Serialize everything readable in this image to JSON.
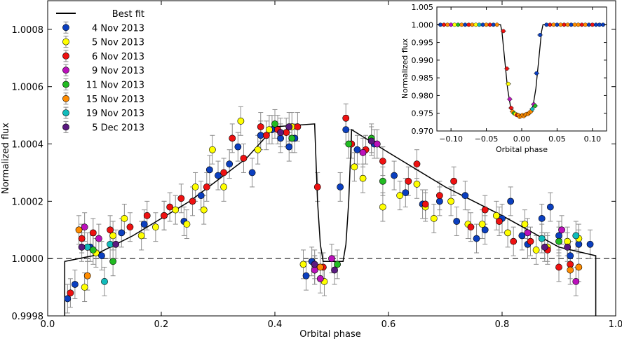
{
  "chart_data": [
    {
      "type": "scatter",
      "panel": "main",
      "xlabel": "Orbital phase",
      "ylabel": "Normalized flux",
      "xlim": [
        0.0,
        1.0
      ],
      "ylim": [
        0.9998,
        1.0009
      ],
      "xticks": [
        0.0,
        0.2,
        0.4,
        0.6,
        0.8,
        1.0
      ],
      "xtick_labels": [
        "0.0",
        "0.2",
        "0.4",
        "0.6",
        "0.8",
        "1.0"
      ],
      "yticks": [
        0.9998,
        1.0,
        1.0002,
        1.0004,
        1.0006,
        1.0008
      ],
      "ytick_labels": [
        "0.9998",
        "1.0000",
        "1.0002",
        "1.0004",
        "1.0006",
        "1.0008"
      ],
      "error_bar": 5e-05,
      "reference_line": 1.0,
      "legend_position": "top-left",
      "fit_line": {
        "name": "Best fit",
        "color": "#000000",
        "x": [
          0.03,
          0.03,
          0.08,
          0.15,
          0.25,
          0.35,
          0.4,
          0.47,
          0.475,
          0.48,
          0.485,
          0.52,
          0.525,
          0.53,
          0.535,
          0.6,
          0.7,
          0.8,
          0.9,
          0.965,
          0.965
        ],
        "y": [
          0.9998,
          0.99999,
          1.00001,
          1.00008,
          1.0002,
          1.00035,
          1.00046,
          1.00047,
          1.0002,
          1.00005,
          0.99999,
          0.99999,
          1.00005,
          1.0002,
          1.00045,
          1.00037,
          1.00025,
          1.00015,
          1.00004,
          1.00001,
          0.9998
        ]
      },
      "series": [
        {
          "name": "4 Nov 2013",
          "color": "#0b3fbf",
          "x": [
            0.035,
            0.048,
            0.075,
            0.095,
            0.13,
            0.17,
            0.205,
            0.24,
            0.27,
            0.285,
            0.3,
            0.32,
            0.335,
            0.36,
            0.375,
            0.395,
            0.41,
            0.425,
            0.435,
            0.455,
            0.465,
            0.515,
            0.525,
            0.545,
            0.575,
            0.61,
            0.63,
            0.66,
            0.69,
            0.72,
            0.735,
            0.755,
            0.77,
            0.8,
            0.815,
            0.835,
            0.845,
            0.87,
            0.885,
            0.9,
            0.92,
            0.935,
            0.955
          ],
          "y": [
            0.99986,
            0.99991,
            1.00004,
            1.00001,
            1.00009,
            1.00012,
            1.00015,
            1.00013,
            1.00022,
            1.00031,
            1.00029,
            1.00033,
            1.00039,
            1.0003,
            1.00043,
            1.00045,
            1.00042,
            1.00039,
            1.00042,
            0.99994,
            0.99999,
            1.00025,
            1.00045,
            1.00038,
            1.0004,
            1.00029,
            1.00023,
            1.00019,
            1.0002,
            1.00013,
            1.00022,
            1.00007,
            1.0001,
            1.00014,
            1.0002,
            1.00008,
            1.00005,
            1.00014,
            1.00018,
            1.00008,
            1.00001,
            1.00005,
            1.00005
          ]
        },
        {
          "name": "5 Nov 2013",
          "color": "#ffff00",
          "x": [
            0.065,
            0.085,
            0.115,
            0.135,
            0.165,
            0.19,
            0.225,
            0.245,
            0.26,
            0.275,
            0.29,
            0.31,
            0.34,
            0.37,
            0.39,
            0.43,
            0.45,
            0.47,
            0.487,
            0.54,
            0.555,
            0.59,
            0.62,
            0.65,
            0.665,
            0.68,
            0.71,
            0.74,
            0.765,
            0.79,
            0.81,
            0.84,
            0.86,
            0.88,
            0.915,
            0.935
          ],
          "y": [
            0.9999,
            1.00002,
            1.00008,
            1.00014,
            1.00008,
            1.00011,
            1.00017,
            1.00012,
            1.00025,
            1.00017,
            1.00038,
            1.00025,
            1.00048,
            1.00038,
            1.00045,
            1.00046,
            0.99998,
            0.99996,
            0.99992,
            1.00032,
            1.00028,
            1.00018,
            1.00022,
            1.00026,
            1.00018,
            1.00014,
            1.0002,
            1.00012,
            1.00012,
            1.00015,
            1.00009,
            1.00012,
            1.00003,
            1.00004,
            1.00006,
            1.00007
          ]
        },
        {
          "name": "6 Nov 2013",
          "color": "#ee1111",
          "x": [
            0.04,
            0.06,
            0.08,
            0.11,
            0.145,
            0.175,
            0.205,
            0.215,
            0.235,
            0.255,
            0.28,
            0.31,
            0.325,
            0.345,
            0.375,
            0.385,
            0.405,
            0.42,
            0.44,
            0.475,
            0.485,
            0.525,
            0.535,
            0.56,
            0.59,
            0.635,
            0.65,
            0.665,
            0.69,
            0.715,
            0.745,
            0.77,
            0.795,
            0.82,
            0.85,
            0.88,
            0.9,
            0.92
          ],
          "y": [
            0.99988,
            1.00007,
            1.00009,
            1.0001,
            1.00011,
            1.00015,
            1.00015,
            1.00018,
            1.00021,
            1.0002,
            1.00025,
            1.0003,
            1.00042,
            1.00035,
            1.00046,
            1.00043,
            1.00045,
            1.00044,
            1.00046,
            1.00025,
            0.99997,
            1.00049,
            1.0004,
            1.00038,
            1.00034,
            1.00027,
            1.00033,
            1.00019,
            1.00022,
            1.00027,
            1.00011,
            1.00017,
            1.00013,
            1.00006,
            1.00006,
            1.00003,
            0.99997,
            0.99998
          ]
        },
        {
          "name": "9 Nov 2013",
          "color": "#bb11bb",
          "x": [
            0.065,
            0.09,
            0.47,
            0.48,
            0.5,
            0.555,
            0.58,
            0.845,
            0.905,
            0.93
          ],
          "y": [
            1.00011,
            1.00007,
            0.99996,
            0.99993,
            1.0,
            1.00037,
            1.0004,
            1.00009,
            1.0001,
            0.99992
          ]
        },
        {
          "name": "11 Nov 2013",
          "color": "#22bb22",
          "x": [
            0.08,
            0.115,
            0.4,
            0.43,
            0.51,
            0.53,
            0.57,
            0.59,
            0.9
          ],
          "y": [
            1.00003,
            0.99999,
            1.00047,
            1.00042,
            0.99998,
            1.0004,
            1.00042,
            1.00027,
            1.00006
          ]
        },
        {
          "name": "15 Nov 2013",
          "color": "#ff8c00",
          "x": [
            0.055,
            0.07,
            0.48,
            0.92,
            0.935
          ],
          "y": [
            1.0001,
            0.99994,
            0.99997,
            0.99996,
            0.99997
          ]
        },
        {
          "name": "19 Nov 2013",
          "color": "#11bbbb",
          "x": [
            0.07,
            0.1,
            0.11,
            0.87,
            0.93
          ],
          "y": [
            1.00004,
            0.99992,
            1.00005,
            1.00007,
            1.00008
          ]
        },
        {
          "name": "5 Dec 2013",
          "color": "#5a1a80",
          "x": [
            0.06,
            0.12,
            0.41,
            0.425,
            0.47,
            0.505,
            0.57,
            0.875,
            0.915
          ],
          "y": [
            1.00004,
            1.00005,
            1.00044,
            1.00046,
            0.99998,
            0.99996,
            1.00041,
            1.00004,
            1.00004
          ]
        }
      ]
    },
    {
      "type": "scatter",
      "panel": "inset",
      "xlabel": "Orbital phase",
      "ylabel": "Normalized flux",
      "xlim": [
        -0.12,
        0.12
      ],
      "ylim": [
        0.97,
        1.005
      ],
      "xticks": [
        -0.1,
        -0.05,
        0.0,
        0.05,
        0.1
      ],
      "xtick_labels": [
        "−0.10",
        "−0.05",
        "0.00",
        "0.05",
        "0.10"
      ],
      "yticks": [
        0.97,
        0.975,
        0.98,
        0.985,
        0.99,
        0.995,
        1.0,
        1.005
      ],
      "ytick_labels": [
        "0.970",
        "0.975",
        "0.980",
        "0.985",
        "0.990",
        "0.995",
        "1.000",
        "1.005"
      ],
      "fit_line": {
        "x": [
          -0.12,
          -0.03,
          -0.028,
          -0.024,
          -0.02,
          -0.016,
          -0.012,
          0.0,
          0.012,
          0.016,
          0.02,
          0.024,
          0.028,
          0.03,
          0.12
        ],
        "y": [
          1.0,
          1.0,
          0.998,
          0.99,
          0.982,
          0.977,
          0.9755,
          0.9745,
          0.9755,
          0.977,
          0.982,
          0.99,
          0.998,
          1.0,
          1.0
        ]
      },
      "points": {
        "x": [
          -0.115,
          -0.11,
          -0.105,
          -0.1,
          -0.095,
          -0.09,
          -0.085,
          -0.08,
          -0.075,
          -0.07,
          -0.065,
          -0.06,
          -0.055,
          -0.05,
          -0.045,
          -0.04,
          -0.035,
          -0.026,
          -0.021,
          -0.019,
          -0.017,
          -0.015,
          -0.013,
          -0.011,
          -0.009,
          -0.007,
          -0.005,
          -0.003,
          -0.001,
          0.001,
          0.003,
          0.005,
          0.007,
          0.009,
          0.011,
          0.013,
          0.015,
          0.017,
          0.019,
          0.021,
          0.026,
          0.035,
          0.04,
          0.045,
          0.05,
          0.055,
          0.06,
          0.065,
          0.07,
          0.075,
          0.08,
          0.085,
          0.09,
          0.095,
          0.1,
          0.105,
          0.11,
          0.115
        ],
        "y": [
          1.0,
          1.0,
          1.0,
          1.0,
          1.0,
          1.0,
          1.0,
          1.0,
          1.0,
          1.0,
          1.0,
          1.0,
          1.0,
          1.0,
          1.0,
          1.0,
          1.0,
          0.9982,
          0.9876,
          0.9833,
          0.979,
          0.9765,
          0.9755,
          0.975,
          0.9748,
          0.9745,
          0.9745,
          0.974,
          0.9742,
          0.9745,
          0.9742,
          0.9746,
          0.9748,
          0.9748,
          0.9752,
          0.9755,
          0.9762,
          0.9775,
          0.9771,
          0.9863,
          0.9971,
          1.0,
          1.0,
          1.0,
          1.0,
          1.0,
          1.0,
          1.0,
          1.0,
          1.0,
          1.0,
          1.0,
          1.0,
          1.0,
          1.0,
          1.0,
          1.0,
          1.0
        ],
        "colors": [
          "#0b3fbf",
          "#ee1111",
          "#ff8c00",
          "#bb11bb",
          "#ffff00",
          "#22bb22",
          "#ff8c00",
          "#0b3fbf",
          "#ee1111",
          "#ff8c00",
          "#ffff00",
          "#11bbbb",
          "#0b3fbf",
          "#ff8c00",
          "#ee1111",
          "#0b3fbf",
          "#ff8c00",
          "#ee1111",
          "#ee1111",
          "#ffff00",
          "#bb11bb",
          "#ee1111",
          "#ff8c00",
          "#22bb22",
          "#ffff00",
          "#ee1111",
          "#ff8c00",
          "#ff8c00",
          "#ff8c00",
          "#ff8c00",
          "#ff8c00",
          "#ff8c00",
          "#ff8c00",
          "#ff8c00",
          "#ff8c00",
          "#ff8c00",
          "#11bbbb",
          "#bb11bb",
          "#22bb22",
          "#0b3fbf",
          "#0b3fbf",
          "#0b3fbf",
          "#ee1111",
          "#ff8c00",
          "#0b3fbf",
          "#ff8c00",
          "#ee1111",
          "#ff8c00",
          "#0b3fbf",
          "#ff8c00",
          "#ff8c00",
          "#ee1111",
          "#ff8c00",
          "#0b3fbf",
          "#ee1111",
          "#0b3fbf",
          "#0b3fbf",
          "#0b3fbf"
        ]
      }
    }
  ]
}
